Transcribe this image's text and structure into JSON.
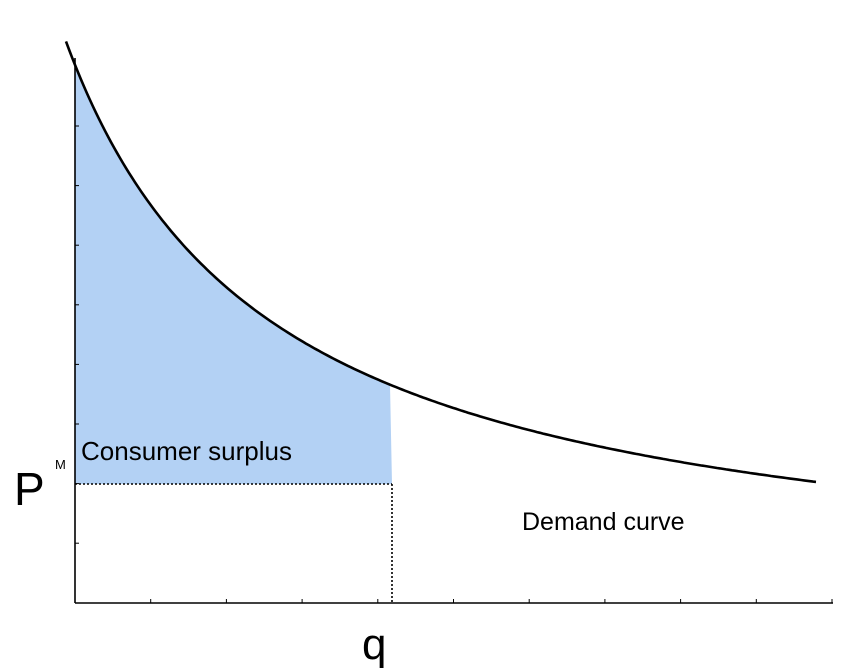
{
  "chart_data": {
    "type": "area",
    "title": "",
    "xlabel": "",
    "ylabel": "",
    "price_label": "P",
    "price_label_superscript": "M",
    "quantity_label": "q",
    "surplus_label": "Consumer surplus",
    "curve_label": "Demand curve",
    "grid": false,
    "colors": {
      "surplus_fill": "#b3d1f4",
      "curve": "#000000",
      "axis": "#000000",
      "guide": "#000000"
    }
  }
}
